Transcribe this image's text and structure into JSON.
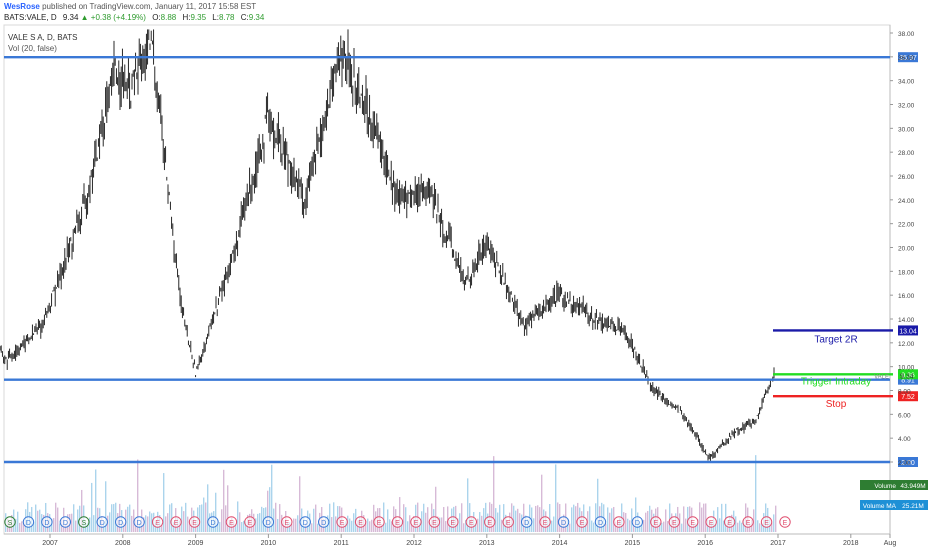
{
  "header": {
    "user": "WesRose",
    "published": "published on TradingView.com, January 11, 2017 15:58 EST",
    "symbol": "BATS:VALE, D",
    "last": "9.34",
    "change": "▲ +0.38 (+4.19%)",
    "o_label": "O:",
    "o_val": "8.88",
    "h_label": "H:",
    "h_val": "9.35",
    "l_label": "L:",
    "l_val": "8.78",
    "c_label": "C:",
    "c_val": "9.34"
  },
  "legend": {
    "title": "VALE S A, D, BATS",
    "vol_indicator": "Vol (20, false)"
  },
  "colors": {
    "candles": "#111111",
    "hline": "#3a78d6",
    "target": "#1a1aa8",
    "trigger": "#22dd22",
    "stop": "#ee2222",
    "volume": "#8fc6e6",
    "volume_alt": "#c9a3c9",
    "axis_text": "#444444"
  },
  "chart_data": {
    "type": "candlestick",
    "ylim": [
      1.0,
      38.5
    ],
    "y_ticks": [
      "2.00",
      "4.00",
      "6.00",
      "8.00",
      "10.00",
      "12.00",
      "14.00",
      "16.00",
      "18.00",
      "20.00",
      "22.00",
      "24.00",
      "26.00",
      "28.00",
      "30.00",
      "32.00",
      "34.00",
      "36.00",
      "38.00"
    ],
    "x_ticks": [
      "2007",
      "2008",
      "2009",
      "2010",
      "2011",
      "2012",
      "2013",
      "2014",
      "2015",
      "2016",
      "2017",
      "2018",
      "Aug"
    ],
    "approx_close_path": [
      {
        "t": 2006.0,
        "y": 14.0
      },
      {
        "t": 2006.4,
        "y": 10.5
      },
      {
        "t": 2006.9,
        "y": 13.5
      },
      {
        "t": 2007.5,
        "y": 24.0
      },
      {
        "t": 2007.9,
        "y": 35.0
      },
      {
        "t": 2008.1,
        "y": 33.0
      },
      {
        "t": 2008.4,
        "y": 37.5
      },
      {
        "t": 2008.8,
        "y": 15.0
      },
      {
        "t": 2009.0,
        "y": 9.5
      },
      {
        "t": 2009.5,
        "y": 19.0
      },
      {
        "t": 2010.0,
        "y": 31.0
      },
      {
        "t": 2010.5,
        "y": 24.0
      },
      {
        "t": 2011.0,
        "y": 36.5
      },
      {
        "t": 2011.4,
        "y": 31.0
      },
      {
        "t": 2011.8,
        "y": 24.0
      },
      {
        "t": 2012.2,
        "y": 25.0
      },
      {
        "t": 2012.7,
        "y": 17.0
      },
      {
        "t": 2013.0,
        "y": 20.5
      },
      {
        "t": 2013.5,
        "y": 13.5
      },
      {
        "t": 2014.0,
        "y": 16.0
      },
      {
        "t": 2014.5,
        "y": 14.0
      },
      {
        "t": 2014.9,
        "y": 13.0
      },
      {
        "t": 2015.3,
        "y": 8.0
      },
      {
        "t": 2015.7,
        "y": 6.0
      },
      {
        "t": 2016.05,
        "y": 2.3
      },
      {
        "t": 2016.4,
        "y": 4.5
      },
      {
        "t": 2016.7,
        "y": 5.5
      },
      {
        "t": 2016.95,
        "y": 9.34
      }
    ],
    "hlines": [
      {
        "value": 35.97,
        "label": "35.97"
      },
      {
        "value": 8.91,
        "label": "8.91"
      },
      {
        "value": 2.0,
        "label": "2.00"
      }
    ],
    "segments": [
      {
        "name": "Target 2R",
        "value": 13.04,
        "label": "13.04"
      },
      {
        "name": "Trigger Intraday",
        "value": 9.36,
        "label": "9.36"
      },
      {
        "name": "Stop",
        "value": 7.52,
        "label": "7.52"
      }
    ],
    "current_price": {
      "value": 9.34,
      "label": "9.34",
      "tag": "VALE"
    },
    "volume_labels": [
      {
        "name": "Volume",
        "value": "43.949M"
      },
      {
        "name": "Volume MA",
        "value": "25.21M"
      }
    ],
    "event_markers": [
      "S",
      "D",
      "D",
      "D",
      "S",
      "D",
      "D",
      "D",
      "E",
      "E",
      "E",
      "D",
      "E",
      "E",
      "D",
      "E",
      "D",
      "D",
      "E",
      "E",
      "E",
      "E",
      "E",
      "E",
      "E",
      "E",
      "E",
      "E",
      "D",
      "E",
      "D",
      "E",
      "D",
      "E",
      "D",
      "E",
      "E",
      "E",
      "E",
      "E",
      "E",
      "E",
      "E"
    ]
  }
}
